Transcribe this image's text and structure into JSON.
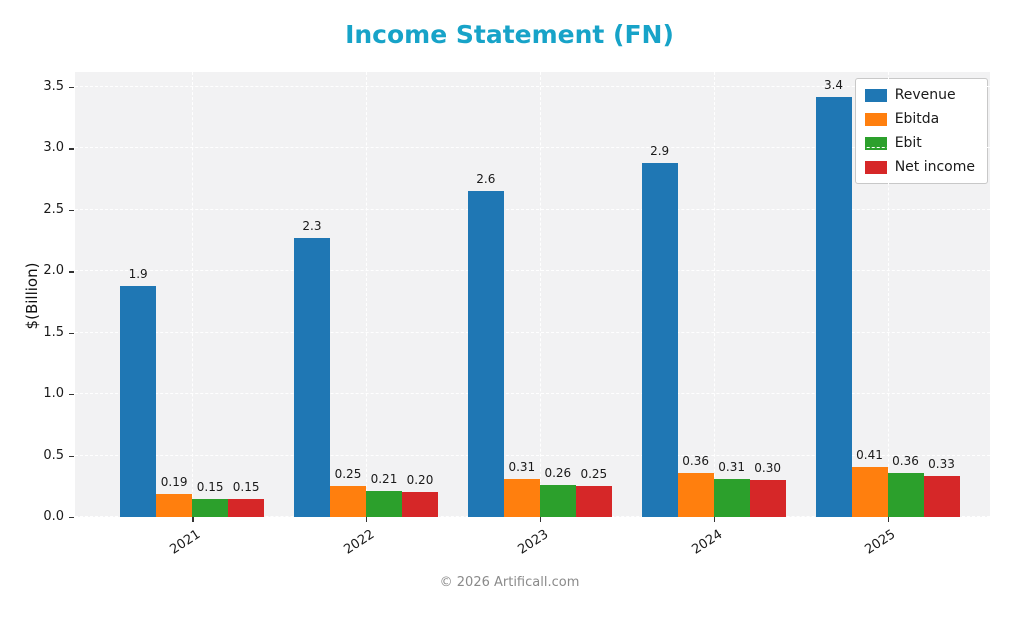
{
  "footer": "© 2026 Artificall.com",
  "chart_data": {
    "type": "bar",
    "title": "Income Statement (FN)",
    "title_color": "#17a3c8",
    "xlabel": "",
    "ylabel": "$(Billion)",
    "categories": [
      "2021",
      "2022",
      "2023",
      "2024",
      "2025"
    ],
    "series": [
      {
        "name": "Revenue",
        "color": "#1f77b4",
        "values": [
          1.88,
          2.27,
          2.65,
          2.88,
          3.42
        ],
        "labels": [
          "1.9",
          "2.3",
          "2.6",
          "2.9",
          "3.4"
        ]
      },
      {
        "name": "Ebitda",
        "color": "#ff7f0e",
        "values": [
          0.19,
          0.25,
          0.31,
          0.36,
          0.41
        ],
        "labels": [
          "0.19",
          "0.25",
          "0.31",
          "0.36",
          "0.41"
        ]
      },
      {
        "name": "Ebit",
        "color": "#2ca02c",
        "values": [
          0.15,
          0.21,
          0.26,
          0.31,
          0.36
        ],
        "labels": [
          "0.15",
          "0.21",
          "0.26",
          "0.31",
          "0.36"
        ]
      },
      {
        "name": "Net income",
        "color": "#d62728",
        "values": [
          0.15,
          0.2,
          0.25,
          0.3,
          0.33
        ],
        "labels": [
          "0.15",
          "0.20",
          "0.25",
          "0.30",
          "0.33"
        ]
      }
    ],
    "y_ticks": [
      "0.0",
      "0.5",
      "1.0",
      "1.5",
      "2.0",
      "2.5",
      "3.0",
      "3.5"
    ],
    "ylim": [
      0,
      3.62
    ],
    "grid": true,
    "legend_position": "upper right"
  }
}
